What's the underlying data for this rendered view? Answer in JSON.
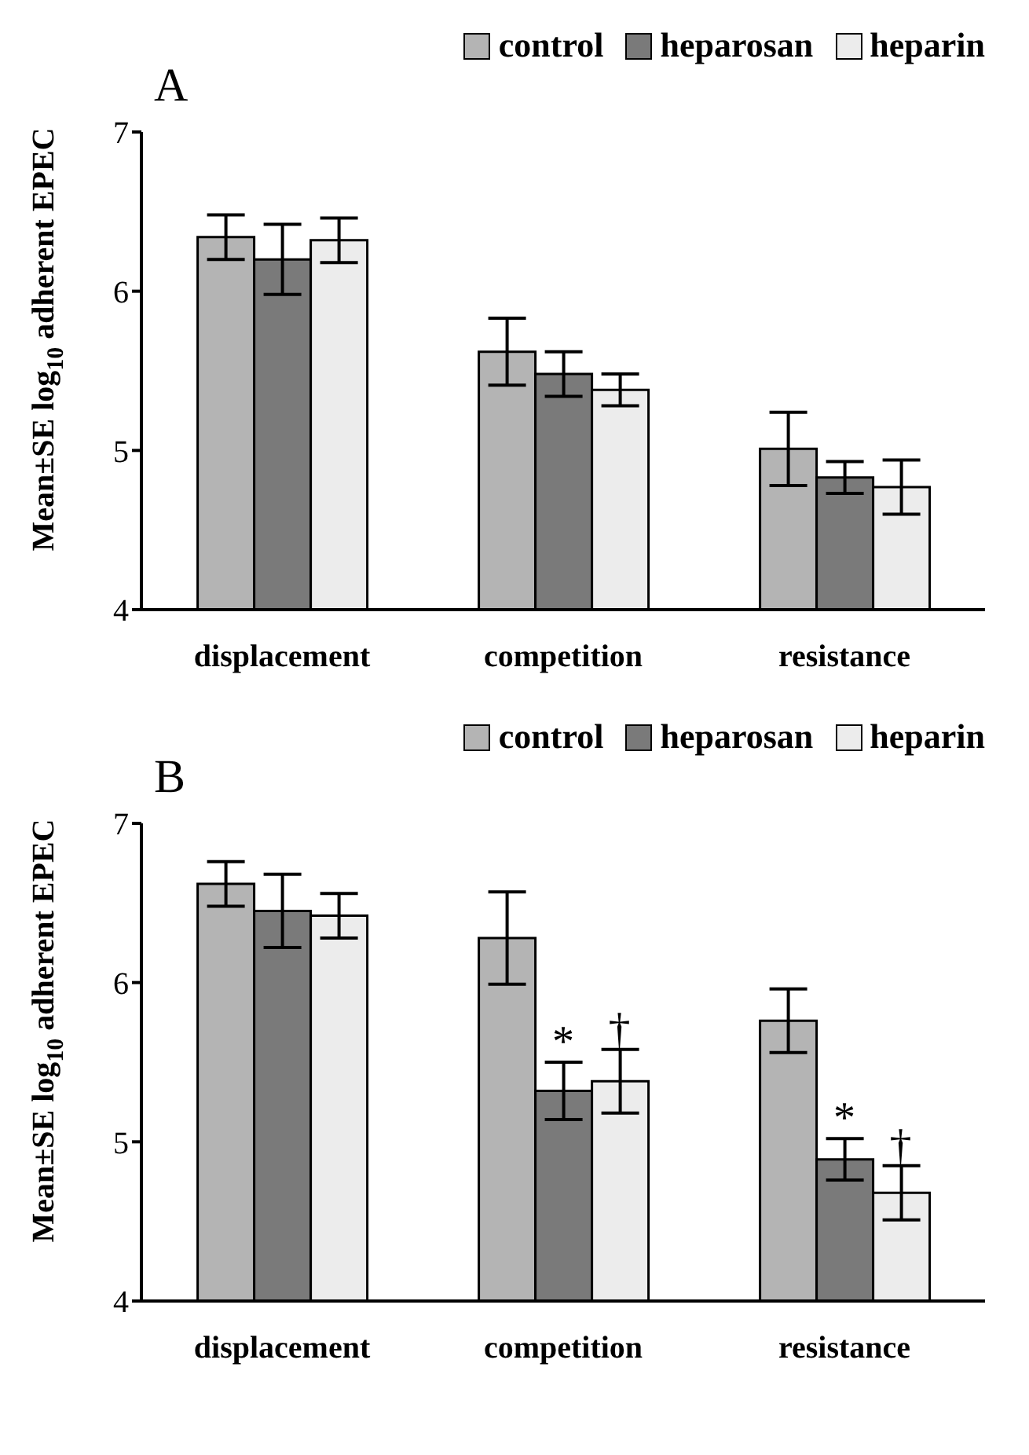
{
  "chart_data": [
    {
      "type": "bar",
      "ylabel": "Mean±SE log$_{10}$ adherent EPEC",
      "categories": [
        "displacement",
        "competition",
        "resistance"
      ],
      "ylim": [
        4,
        7
      ],
      "yticks": [
        4,
        5,
        6,
        7
      ],
      "grid": false,
      "legend": "top right",
      "series": [
        {
          "name": "control",
          "color": "#b4b4b4",
          "values": [
            6.34,
            5.62,
            5.01
          ],
          "errors": [
            0.14,
            0.21,
            0.23
          ]
        },
        {
          "name": "heparosan",
          "color": "#7a7a7a",
          "values": [
            6.2,
            5.48,
            4.83
          ],
          "errors": [
            0.22,
            0.14,
            0.1
          ]
        },
        {
          "name": "heparin",
          "color": "#ececec",
          "values": [
            6.32,
            5.38,
            4.77
          ],
          "errors": [
            0.14,
            0.1,
            0.17
          ]
        }
      ],
      "annotations": [
        "A"
      ]
    },
    {
      "type": "bar",
      "ylabel": "Mean±SE log$_{10}$ adherent EPEC",
      "categories": [
        "displacement",
        "competition",
        "resistance"
      ],
      "ylim": [
        4,
        7
      ],
      "yticks": [
        4,
        5,
        6,
        7
      ],
      "grid": false,
      "legend": "top right",
      "series": [
        {
          "name": "control",
          "color": "#b4b4b4",
          "values": [
            6.62,
            6.28,
            5.76
          ],
          "errors": [
            0.14,
            0.29,
            0.2
          ]
        },
        {
          "name": "heparosan",
          "color": "#7a7a7a",
          "values": [
            6.45,
            5.32,
            4.89
          ],
          "errors": [
            0.23,
            0.18,
            0.13
          ]
        },
        {
          "name": "heparin",
          "color": "#ececec",
          "values": [
            6.42,
            5.38,
            4.68
          ],
          "errors": [
            0.14,
            0.2,
            0.17
          ]
        }
      ],
      "annotations": [
        "B",
        {
          "text": "*",
          "x": "competition",
          "y": 5.32
        },
        {
          "text": "†",
          "x": "competition",
          "y": 5.38
        },
        {
          "text": "*",
          "x": "resistance",
          "y": 4.89
        },
        {
          "text": "†",
          "x": "resistance",
          "y": 4.85
        }
      ]
    }
  ]
}
